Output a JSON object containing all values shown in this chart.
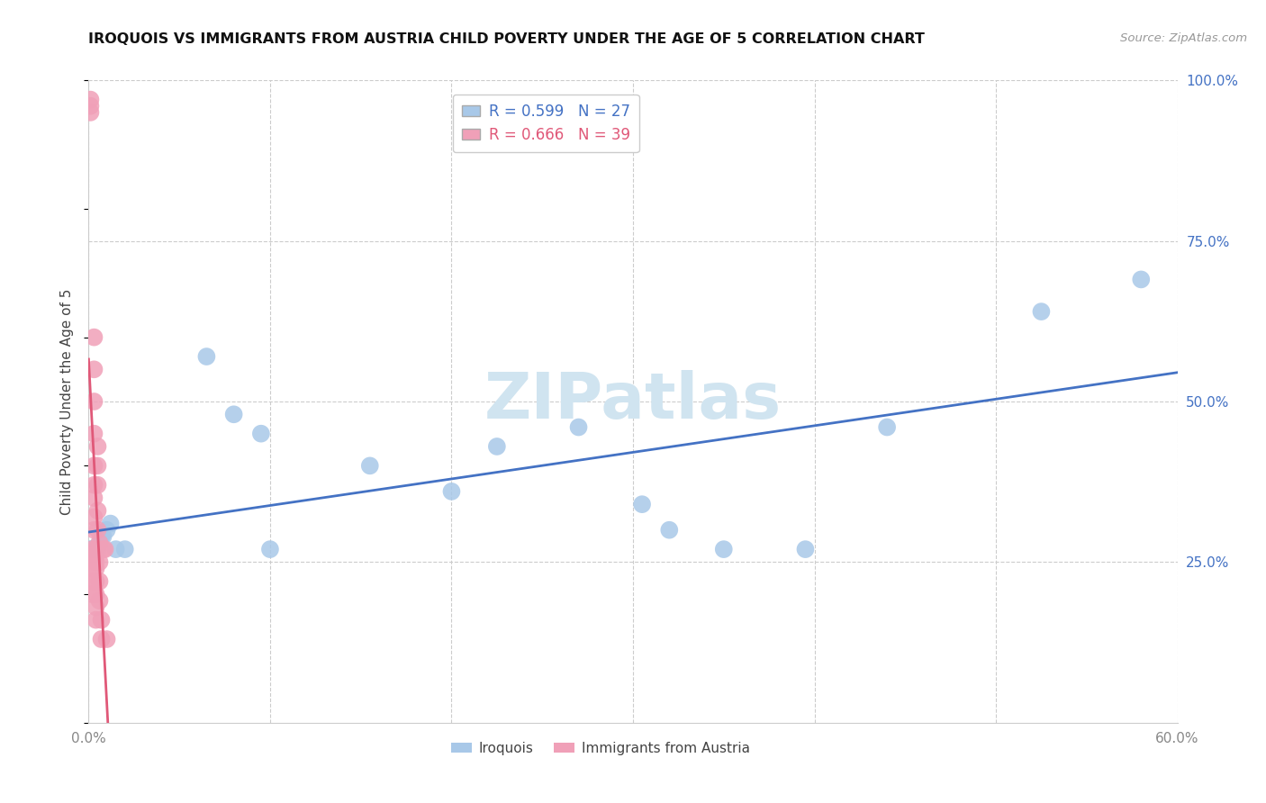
{
  "title": "IROQUOIS VS IMMIGRANTS FROM AUSTRIA CHILD POVERTY UNDER THE AGE OF 5 CORRELATION CHART",
  "source": "Source: ZipAtlas.com",
  "ylabel": "Child Poverty Under the Age of 5",
  "legend_labels": [
    "Iroquois",
    "Immigrants from Austria"
  ],
  "r_iroquois": 0.599,
  "n_iroquois": 27,
  "r_austria": 0.666,
  "n_austria": 39,
  "color_iroquois": "#a8c8e8",
  "color_austria": "#f0a0b8",
  "line_color_iroquois": "#4472c4",
  "line_color_austria": "#e05878",
  "watermark_color": "#d0e4f0",
  "xlim": [
    0.0,
    0.6
  ],
  "ylim": [
    0.0,
    1.0
  ],
  "iroquois_x": [
    0.001,
    0.002,
    0.003,
    0.004,
    0.005,
    0.006,
    0.007,
    0.008,
    0.01,
    0.012,
    0.015,
    0.02,
    0.065,
    0.08,
    0.095,
    0.1,
    0.155,
    0.2,
    0.225,
    0.27,
    0.305,
    0.32,
    0.35,
    0.395,
    0.44,
    0.525,
    0.58
  ],
  "iroquois_y": [
    0.27,
    0.27,
    0.27,
    0.27,
    0.27,
    0.28,
    0.29,
    0.29,
    0.3,
    0.31,
    0.27,
    0.27,
    0.57,
    0.48,
    0.45,
    0.27,
    0.4,
    0.36,
    0.43,
    0.46,
    0.34,
    0.3,
    0.27,
    0.27,
    0.46,
    0.64,
    0.69
  ],
  "austria_x": [
    0.001,
    0.001,
    0.001,
    0.002,
    0.002,
    0.002,
    0.002,
    0.002,
    0.003,
    0.003,
    0.003,
    0.003,
    0.003,
    0.003,
    0.003,
    0.003,
    0.003,
    0.004,
    0.004,
    0.004,
    0.004,
    0.004,
    0.004,
    0.004,
    0.004,
    0.005,
    0.005,
    0.005,
    0.005,
    0.005,
    0.006,
    0.006,
    0.006,
    0.006,
    0.007,
    0.007,
    0.008,
    0.009,
    0.01
  ],
  "austria_y": [
    0.97,
    0.96,
    0.95,
    0.27,
    0.26,
    0.24,
    0.22,
    0.2,
    0.6,
    0.55,
    0.5,
    0.45,
    0.4,
    0.37,
    0.35,
    0.32,
    0.3,
    0.27,
    0.26,
    0.25,
    0.24,
    0.22,
    0.2,
    0.18,
    0.16,
    0.43,
    0.4,
    0.37,
    0.33,
    0.3,
    0.28,
    0.25,
    0.22,
    0.19,
    0.16,
    0.13,
    0.27,
    0.27,
    0.13
  ]
}
